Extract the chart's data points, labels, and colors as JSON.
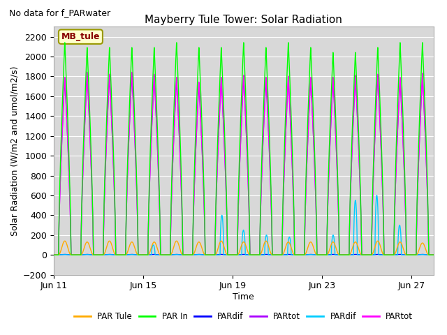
{
  "title": "Mayberry Tule Tower: Solar Radiation",
  "subtitle": "No data for f_PARwater",
  "xlabel": "Time",
  "ylabel": "Solar Radiation (W/m2 and umol/m2/s)",
  "ylim": [
    -200,
    2300
  ],
  "yticks": [
    -200,
    0,
    200,
    400,
    600,
    800,
    1000,
    1200,
    1400,
    1600,
    1800,
    2000,
    2200
  ],
  "num_days": 17,
  "xtick_labels": [
    "Jun 11",
    "Jun 15",
    "Jun 19",
    "Jun 23",
    "Jun 27"
  ],
  "xtick_positions": [
    0,
    4,
    8,
    12,
    16
  ],
  "plot_bg_color": "#d8d8d8",
  "grid_color": "#ffffff",
  "legend_entries": [
    {
      "label": "PAR Tule",
      "color": "#ffaa00"
    },
    {
      "label": "PAR In",
      "color": "#00ff00"
    },
    {
      "label": "PARdif",
      "color": "#0000ff"
    },
    {
      "label": "PARtot",
      "color": "#aa00ff"
    },
    {
      "label": "PARdif",
      "color": "#00ccff"
    },
    {
      "label": "PARtot",
      "color": "#ff00ff"
    }
  ],
  "mb_tule_box": {
    "text": "MB_tule",
    "facecolor": "#ffffcc",
    "edgecolor": "#999900",
    "textcolor": "#880000"
  },
  "line_width": 1.0
}
